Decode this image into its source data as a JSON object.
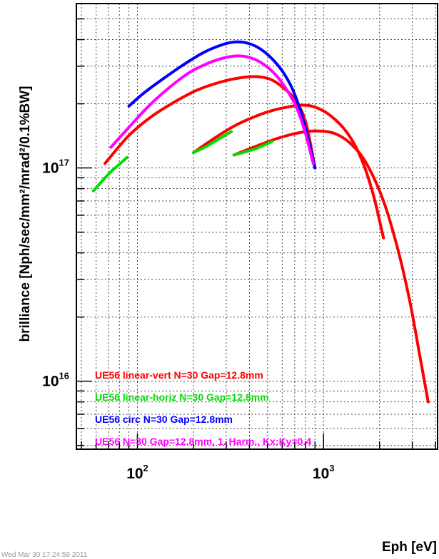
{
  "chart_data": {
    "type": "line",
    "title": "",
    "xlabel": "Eph [eV]",
    "ylabel": "brilliance [Nph/sec/mm²/mrad²/0.1%BW]",
    "x_scale": "log",
    "y_scale": "log",
    "xlim": [
      47,
      4100
    ],
    "ylim": [
      4800000000000000.0,
      5.9e+17
    ],
    "grid": true,
    "x_ticks": [
      {
        "value": 100,
        "base": "10",
        "exp": "2"
      },
      {
        "value": 1000,
        "base": "10",
        "exp": "3"
      }
    ],
    "y_ticks": [
      {
        "value": 1e+16,
        "base": "10",
        "exp": "16"
      },
      {
        "value": 1e+17,
        "base": "10",
        "exp": "17"
      }
    ],
    "legend_position": "bottom-left",
    "series": [
      {
        "name": "UE56 linear-vert N=30 Gap=12.8mm",
        "color": "#ff0000",
        "segments": [
          [
            [
              67,
              1.05e+17
            ],
            [
              90,
              1.42e+17
            ],
            [
              120,
              1.75e+17
            ],
            [
              160,
              2.05e+17
            ],
            [
              210,
              2.32e+17
            ],
            [
              280,
              2.53e+17
            ],
            [
              360,
              2.65e+17
            ],
            [
              440,
              2.68e+17
            ],
            [
              520,
              2.6e+17
            ],
            [
              600,
              2.4e+17
            ],
            [
              700,
              2.1e+17
            ],
            [
              800,
              1.65e+17
            ],
            [
              900,
              1e+17
            ]
          ],
          [
            [
              200,
              1.18e+17
            ],
            [
              260,
              1.38e+17
            ],
            [
              330,
              1.57e+17
            ],
            [
              420,
              1.73e+17
            ],
            [
              520,
              1.85e+17
            ],
            [
              640,
              1.93e+17
            ],
            [
              760,
              1.97e+17
            ],
            [
              900,
              1.93e+17
            ],
            [
              1100,
              1.75e+17
            ],
            [
              1350,
              1.45e+17
            ],
            [
              1600,
              1.1e+17
            ],
            [
              1850,
              7.5e+16
            ],
            [
              2100,
              4.7e+16
            ]
          ],
          [
            [
              330,
              1.15e+17
            ],
            [
              420,
              1.25e+17
            ],
            [
              530,
              1.35e+17
            ],
            [
              660,
              1.43e+17
            ],
            [
              800,
              1.48e+17
            ],
            [
              950,
              1.49e+17
            ],
            [
              1150,
              1.45e+17
            ],
            [
              1400,
              1.3e+17
            ],
            [
              1700,
              1.05e+17
            ],
            [
              2100,
              7e+16
            ],
            [
              2500,
              4.2e+16
            ],
            [
              2900,
              2.4e+16
            ],
            [
              3300,
              1.3e+16
            ],
            [
              3650,
              8000000000000000.0
            ]
          ]
        ]
      },
      {
        "name": "UE56 linear-horiz N=30 Gap=12.8mm",
        "color": "#00dd00",
        "segments": [
          [
            [
              58,
              7.8e+16
            ],
            [
              64,
              8.6e+16
            ],
            [
              72,
              9.6e+16
            ],
            [
              80,
              1.04e+17
            ],
            [
              88,
              1.12e+17
            ]
          ],
          [
            [
              200,
              1.18e+17
            ],
            [
              230,
              1.25e+17
            ],
            [
              260,
              1.33e+17
            ],
            [
              290,
              1.41e+17
            ],
            [
              320,
              1.48e+17
            ]
          ],
          [
            [
              330,
              1.15e+17
            ],
            [
              380,
              1.19e+17
            ],
            [
              430,
              1.23e+17
            ],
            [
              480,
              1.28e+17
            ],
            [
              530,
              1.33e+17
            ]
          ]
        ]
      },
      {
        "name": "UE56 circ N=30 Gap=12.8mm",
        "color": "#0000ff",
        "segments": [
          [
            [
              90,
              1.95e+17
            ],
            [
              110,
              2.27e+17
            ],
            [
              140,
              2.65e+17
            ],
            [
              180,
              3.08e+17
            ],
            [
              230,
              3.5e+17
            ],
            [
              290,
              3.8e+17
            ],
            [
              340,
              3.9e+17
            ],
            [
              390,
              3.85e+17
            ],
            [
              450,
              3.65e+17
            ],
            [
              520,
              3.3e+17
            ],
            [
              600,
              2.85e+17
            ],
            [
              680,
              2.35e+17
            ],
            [
              760,
              1.8e+17
            ],
            [
              840,
              1.3e+17
            ],
            [
              900,
              1e+17
            ]
          ]
        ]
      },
      {
        "name": "UE56 N=30 Gap=12.8mm, 1. Harm., Kx:Ky=0.4",
        "color": "#ff00ff",
        "segments": [
          [
            [
              72,
              1.25e+17
            ],
            [
              90,
              1.55e+17
            ],
            [
              115,
              1.95e+17
            ],
            [
              150,
              2.4e+17
            ],
            [
              190,
              2.8e+17
            ],
            [
              240,
              3.1e+17
            ],
            [
              300,
              3.3e+17
            ],
            [
              360,
              3.35e+17
            ],
            [
              420,
              3.25e+17
            ],
            [
              480,
              3.05e+17
            ],
            [
              560,
              2.7e+17
            ],
            [
              640,
              2.3e+17
            ],
            [
              720,
              1.9e+17
            ],
            [
              800,
              1.45e+17
            ],
            [
              880,
              1.05e+17
            ]
          ]
        ]
      }
    ]
  },
  "footer": "Wed Mar 30 17:24:59 2011"
}
